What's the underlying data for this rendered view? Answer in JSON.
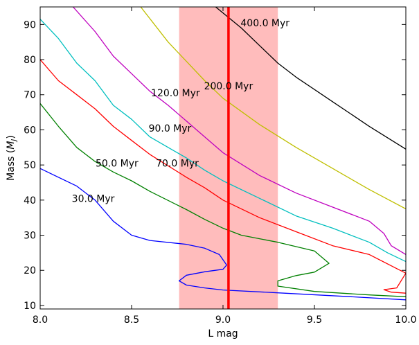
{
  "chart_data": {
    "type": "line",
    "xlabel": "L mag",
    "ylabel": "Mass ($M_J$)",
    "ylabel_main": "Mass (",
    "ylabel_math": "M",
    "ylabel_sub": "J",
    "ylabel_end": ")",
    "xlim": [
      8.0,
      10.0
    ],
    "ylim": [
      9,
      95
    ],
    "xticks": [
      "8.0",
      "8.5",
      "9.0",
      "9.5",
      "10.0"
    ],
    "xtick_values": [
      8.0,
      8.5,
      9.0,
      9.5,
      10.0
    ],
    "yticks": [
      "10",
      "20",
      "30",
      "40",
      "50",
      "60",
      "70",
      "80",
      "90"
    ],
    "ytick_values": [
      10,
      20,
      30,
      40,
      50,
      60,
      70,
      80,
      90
    ],
    "grid": false,
    "shaded_band": {
      "x_range": [
        8.76,
        9.3
      ],
      "color": "#ffbcbc"
    },
    "vertical_line": {
      "x": 9.03,
      "color": "#ff0000"
    },
    "series": [
      {
        "label": "30.0 Myr",
        "color": "#0000ff",
        "label_at": [
          8.29,
          40.5
        ],
        "points": [
          [
            8.0,
            49
          ],
          [
            8.2,
            44
          ],
          [
            8.3,
            40
          ],
          [
            8.4,
            34
          ],
          [
            8.5,
            30
          ],
          [
            8.6,
            28.5
          ],
          [
            8.8,
            27.4
          ],
          [
            8.9,
            26.3
          ],
          [
            8.98,
            24.5
          ],
          [
            9.02,
            21.5
          ],
          [
            9.0,
            20.3
          ],
          [
            8.9,
            19.6
          ],
          [
            8.8,
            18.6
          ],
          [
            8.76,
            17
          ],
          [
            8.8,
            15.8
          ],
          [
            8.9,
            15
          ],
          [
            9.0,
            14.4
          ],
          [
            9.3,
            13.6
          ],
          [
            9.7,
            12.5
          ],
          [
            10.0,
            11.6
          ]
        ]
      },
      {
        "label": "50.0 Myr",
        "color": "#008000",
        "label_at": [
          8.42,
          50.5
        ],
        "points": [
          [
            8.0,
            67.5
          ],
          [
            8.1,
            61
          ],
          [
            8.2,
            55
          ],
          [
            8.3,
            51
          ],
          [
            8.4,
            48
          ],
          [
            8.5,
            45.5
          ],
          [
            8.6,
            42.5
          ],
          [
            8.8,
            37.3
          ],
          [
            8.9,
            34.5
          ],
          [
            9.0,
            32
          ],
          [
            9.1,
            30
          ],
          [
            9.2,
            29
          ],
          [
            9.3,
            28
          ],
          [
            9.5,
            25.5
          ],
          [
            9.58,
            22
          ],
          [
            9.5,
            19.5
          ],
          [
            9.4,
            18.5
          ],
          [
            9.3,
            17
          ],
          [
            9.3,
            15.5
          ],
          [
            9.5,
            14
          ],
          [
            9.8,
            13
          ],
          [
            10.0,
            12.5
          ]
        ]
      },
      {
        "label": "70.0 Myr",
        "color": "#ff0000",
        "label_at": [
          8.75,
          50.5
        ],
        "points": [
          [
            8.0,
            80
          ],
          [
            8.1,
            74
          ],
          [
            8.2,
            70
          ],
          [
            8.3,
            66
          ],
          [
            8.4,
            61
          ],
          [
            8.5,
            57
          ],
          [
            8.6,
            53
          ],
          [
            8.8,
            46.5
          ],
          [
            8.9,
            43.5
          ],
          [
            9.0,
            40
          ],
          [
            9.2,
            35
          ],
          [
            9.4,
            31
          ],
          [
            9.6,
            27
          ],
          [
            9.8,
            24.5
          ],
          [
            9.95,
            20.5
          ],
          [
            10.0,
            19.2
          ],
          [
            9.95,
            15
          ],
          [
            9.88,
            14.5
          ],
          [
            9.92,
            13.8
          ],
          [
            10.0,
            13.5
          ]
        ]
      },
      {
        "label": "90.0 Myr",
        "color": "#00bfbf",
        "label_at": [
          8.71,
          60.5
        ],
        "points": [
          [
            8.0,
            91.5
          ],
          [
            8.1,
            86
          ],
          [
            8.2,
            79
          ],
          [
            8.3,
            74
          ],
          [
            8.4,
            67
          ],
          [
            8.5,
            63
          ],
          [
            8.6,
            58
          ],
          [
            8.8,
            52
          ],
          [
            8.9,
            48.5
          ],
          [
            9.0,
            45.5
          ],
          [
            9.2,
            40.5
          ],
          [
            9.4,
            35.5
          ],
          [
            9.6,
            32
          ],
          [
            9.8,
            28
          ],
          [
            9.9,
            25
          ],
          [
            10.0,
            22.5
          ]
        ]
      },
      {
        "label": "120.0 Myr",
        "color": "#bf00bf",
        "label_at": [
          8.74,
          70.5
        ],
        "points": [
          [
            8.18,
            95
          ],
          [
            8.3,
            88
          ],
          [
            8.4,
            81
          ],
          [
            8.5,
            76
          ],
          [
            8.6,
            71
          ],
          [
            8.7,
            67
          ],
          [
            8.8,
            62.5
          ],
          [
            8.9,
            58
          ],
          [
            9.0,
            53.5
          ],
          [
            9.2,
            47
          ],
          [
            9.4,
            42
          ],
          [
            9.6,
            38
          ],
          [
            9.8,
            34
          ],
          [
            9.88,
            30.5
          ],
          [
            9.92,
            27
          ],
          [
            10.0,
            24.5
          ]
        ]
      },
      {
        "label": "200.0 Myr",
        "color": "#bfbf00",
        "label_at": [
          9.03,
          72.5
        ],
        "points": [
          [
            8.55,
            95
          ],
          [
            8.7,
            85
          ],
          [
            8.8,
            79.5
          ],
          [
            8.9,
            74
          ],
          [
            9.0,
            69
          ],
          [
            9.2,
            61.5
          ],
          [
            9.4,
            55
          ],
          [
            9.6,
            49
          ],
          [
            9.8,
            43
          ],
          [
            10.0,
            37.5
          ]
        ]
      },
      {
        "label": "400.0 Myr",
        "color": "#000000",
        "label_at": [
          9.23,
          90.5
        ],
        "points": [
          [
            8.96,
            95
          ],
          [
            9.1,
            89
          ],
          [
            9.2,
            84
          ],
          [
            9.3,
            79
          ],
          [
            9.4,
            75
          ],
          [
            9.6,
            68
          ],
          [
            9.8,
            61
          ],
          [
            10.0,
            54.5
          ]
        ]
      }
    ]
  }
}
